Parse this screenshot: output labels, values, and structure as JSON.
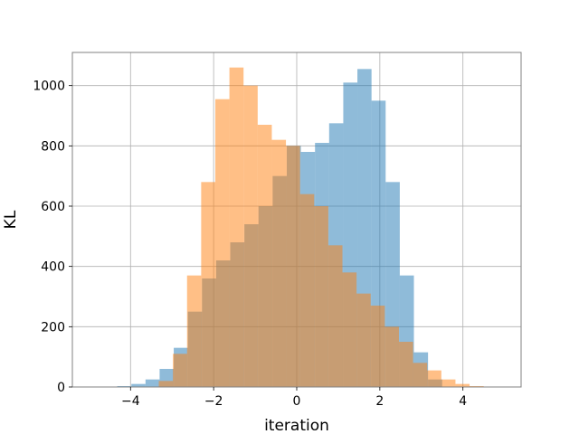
{
  "chart_data": {
    "type": "bar",
    "title": "",
    "xlabel": "iteration",
    "ylabel": "KL",
    "xlim": [
      -5.4,
      5.4
    ],
    "ylim": [
      0,
      1110
    ],
    "xticks": [
      -4,
      -2,
      0,
      2,
      4
    ],
    "xtick_labels": [
      "−4",
      "−2",
      "0",
      "2",
      "4"
    ],
    "yticks": [
      0,
      200,
      400,
      600,
      800,
      1000
    ],
    "ytick_labels": [
      "0",
      "200",
      "400",
      "600",
      "800",
      "1000"
    ],
    "grid": true,
    "legend": false,
    "bin_width": 0.34,
    "series": [
      {
        "color": "#1f77b4",
        "opacity": 0.5,
        "bin_starts": [
          -4.32,
          -3.98,
          -3.64,
          -3.3,
          -2.96,
          -2.62,
          -2.28,
          -1.94,
          -1.6,
          -1.26,
          -0.92,
          -0.58,
          -0.24,
          0.1,
          0.44,
          0.78,
          1.12,
          1.46,
          1.8,
          2.14,
          2.48,
          2.82,
          3.16
        ],
        "values": [
          3,
          10,
          25,
          60,
          130,
          250,
          360,
          420,
          480,
          540,
          600,
          700,
          800,
          780,
          810,
          875,
          1010,
          1055,
          950,
          680,
          370,
          115,
          25
        ]
      },
      {
        "color": "#ff7f0e",
        "opacity": 0.5,
        "bin_starts": [
          -3.32,
          -2.98,
          -2.64,
          -2.3,
          -1.96,
          -1.62,
          -1.28,
          -0.94,
          -0.6,
          -0.26,
          0.08,
          0.42,
          0.76,
          1.1,
          1.44,
          1.78,
          2.12,
          2.46,
          2.8,
          3.14,
          3.48,
          3.82,
          4.16
        ],
        "values": [
          20,
          110,
          370,
          680,
          955,
          1060,
          1000,
          870,
          820,
          800,
          640,
          600,
          470,
          380,
          310,
          270,
          200,
          150,
          80,
          55,
          25,
          10,
          3
        ]
      }
    ]
  }
}
